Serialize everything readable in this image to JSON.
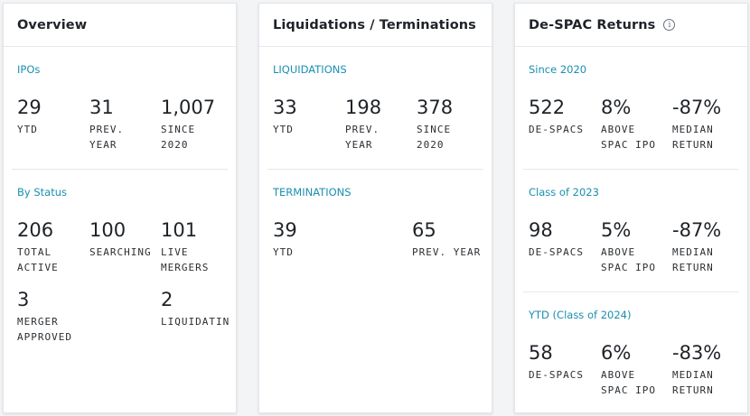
{
  "overview": {
    "title": "Overview",
    "ipos": {
      "title": "IPOs",
      "stats": [
        {
          "value": "29",
          "label": "YTD"
        },
        {
          "value": "31",
          "label": "PREV.\nYEAR"
        },
        {
          "value": "1,007",
          "label": "SINCE\n2020"
        }
      ]
    },
    "by_status": {
      "title": "By Status",
      "stats": [
        {
          "value": "206",
          "label": "TOTAL\nACTIVE"
        },
        {
          "value": "100",
          "label": "SEARCHING"
        },
        {
          "value": "101",
          "label": "LIVE\nMERGERS"
        },
        {
          "value": "3",
          "label": "MERGER\nAPPROVED"
        },
        {
          "value": "2",
          "label": "LIQUIDATIN"
        }
      ]
    }
  },
  "liquidations": {
    "title": "Liquidations / Terminations",
    "liq": {
      "title": "LIQUIDATIONS",
      "stats": [
        {
          "value": "33",
          "label": "YTD"
        },
        {
          "value": "198",
          "label": "PREV.\nYEAR"
        },
        {
          "value": "378",
          "label": "SINCE\n2020"
        }
      ]
    },
    "term": {
      "title": "TERMINATIONS",
      "stats": [
        {
          "value": "39",
          "label": "YTD"
        },
        {
          "value": "65",
          "label": "PREV. YEAR"
        }
      ]
    }
  },
  "despac": {
    "title": "De-SPAC Returns",
    "info_icon": "info-icon",
    "since2020": {
      "title": "Since 2020",
      "stats": [
        {
          "value": "522",
          "label": "DE-SPACS"
        },
        {
          "value": "8%",
          "label": "ABOVE\nSPAC IPO"
        },
        {
          "value": "-87%",
          "label": "MEDIAN\nRETURN"
        }
      ]
    },
    "class2023": {
      "title": "Class of 2023",
      "stats": [
        {
          "value": "98",
          "label": "DE-SPACS"
        },
        {
          "value": "5%",
          "label": "ABOVE\nSPAC IPO"
        },
        {
          "value": "-87%",
          "label": "MEDIAN\nRETURN"
        }
      ]
    },
    "ytd2024": {
      "title": "YTD (Class of 2024)",
      "stats": [
        {
          "value": "58",
          "label": "DE-SPACS"
        },
        {
          "value": "6%",
          "label": "ABOVE\nSPAC IPO"
        },
        {
          "value": "-83%",
          "label": "MEDIAN\nRETURN"
        }
      ]
    }
  },
  "colors": {
    "accent": "#1a8fb0",
    "text": "#1f2328",
    "border": "#e6e8eb"
  }
}
